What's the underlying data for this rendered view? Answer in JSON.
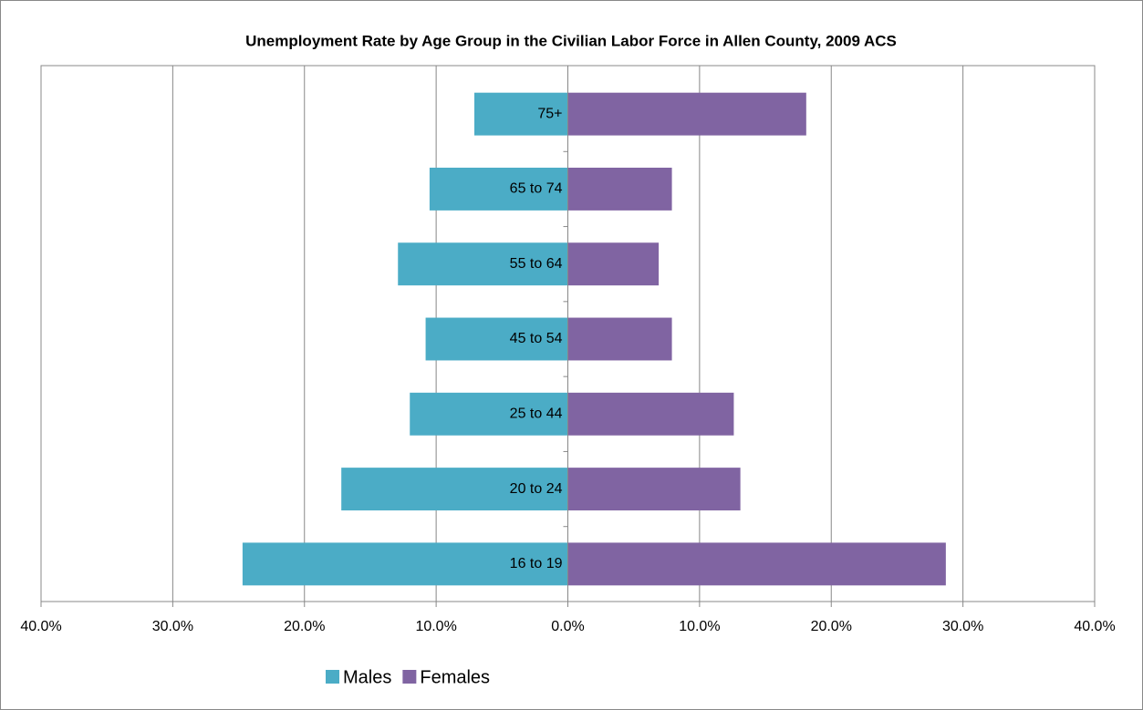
{
  "chart_data": {
    "type": "bar",
    "orientation": "horizontal",
    "title": "Unemployment Rate by Age Group in the Civilian Labor Force in Allen County, 2009 ACS",
    "categories": [
      "16 to 19",
      "20 to 24",
      "25 to 44",
      "45 to 54",
      "55 to 64",
      "65 to 74",
      "75+"
    ],
    "series": [
      {
        "name": "Males",
        "color": "#4bacc6",
        "values": [
          -24.7,
          -17.2,
          -12.0,
          -10.8,
          -12.9,
          -10.5,
          -7.1
        ]
      },
      {
        "name": "Females",
        "color": "#8064a2",
        "values": [
          28.7,
          13.1,
          12.6,
          7.9,
          6.9,
          7.9,
          18.1
        ]
      }
    ],
    "xlim": [
      -40,
      40
    ],
    "xticks": [
      {
        "value": -40,
        "label": "40.0%"
      },
      {
        "value": -30,
        "label": "30.0%"
      },
      {
        "value": -20,
        "label": "20.0%"
      },
      {
        "value": -10,
        "label": "10.0%"
      },
      {
        "value": 0,
        "label": "0.0%"
      },
      {
        "value": 10,
        "label": "10.0%"
      },
      {
        "value": 20,
        "label": "20.0%"
      },
      {
        "value": 30,
        "label": "30.0%"
      },
      {
        "value": 40,
        "label": "40.0%"
      }
    ],
    "grid": true,
    "legend": "bottom"
  }
}
